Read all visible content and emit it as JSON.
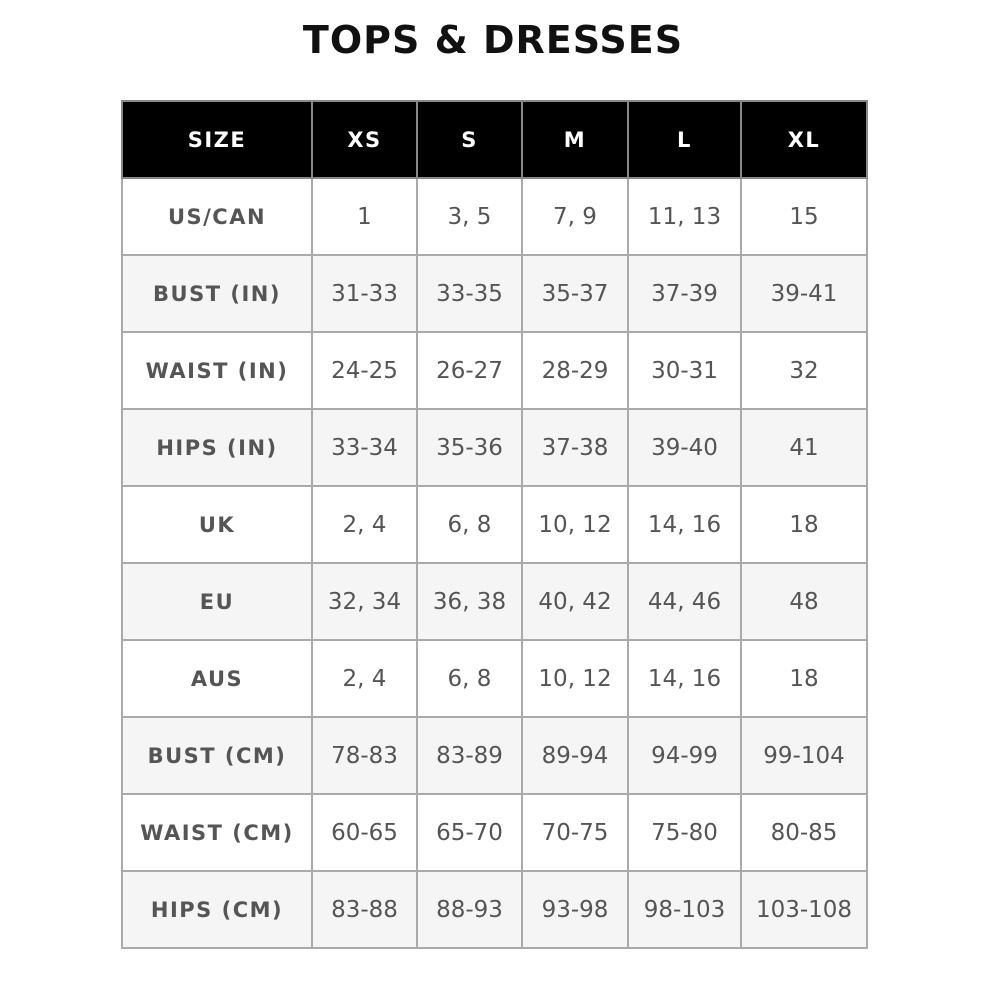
{
  "header": {
    "title": "TOPS & DRESSES"
  },
  "table": {
    "columns": [
      "SIZE",
      "XS",
      "S",
      "M",
      "L",
      "XL"
    ],
    "rows": [
      [
        "US/CAN",
        "1",
        "3, 5",
        "7, 9",
        "11, 13",
        "15"
      ],
      [
        "BUST (IN)",
        "31-33",
        "33-35",
        "35-37",
        "37-39",
        "39-41"
      ],
      [
        "WAIST (IN)",
        "24-25",
        "26-27",
        "28-29",
        "30-31",
        "32"
      ],
      [
        "HIPS (IN)",
        "33-34",
        "35-36",
        "37-38",
        "39-40",
        "41"
      ],
      [
        "UK",
        "2, 4",
        "6, 8",
        "10, 12",
        "14, 16",
        "18"
      ],
      [
        "EU",
        "32, 34",
        "36, 38",
        "40, 42",
        "44, 46",
        "48"
      ],
      [
        "AUS",
        "2, 4",
        "6, 8",
        "10, 12",
        "14, 16",
        "18"
      ],
      [
        "BUST (CM)",
        "78-83",
        "83-89",
        "89-94",
        "94-99",
        "99-104"
      ],
      [
        "WAIST (CM)",
        "60-65",
        "65-70",
        "70-75",
        "75-80",
        "80-85"
      ],
      [
        "HIPS (CM)",
        "83-88",
        "88-93",
        "93-98",
        "98-103",
        "103-108"
      ]
    ]
  }
}
